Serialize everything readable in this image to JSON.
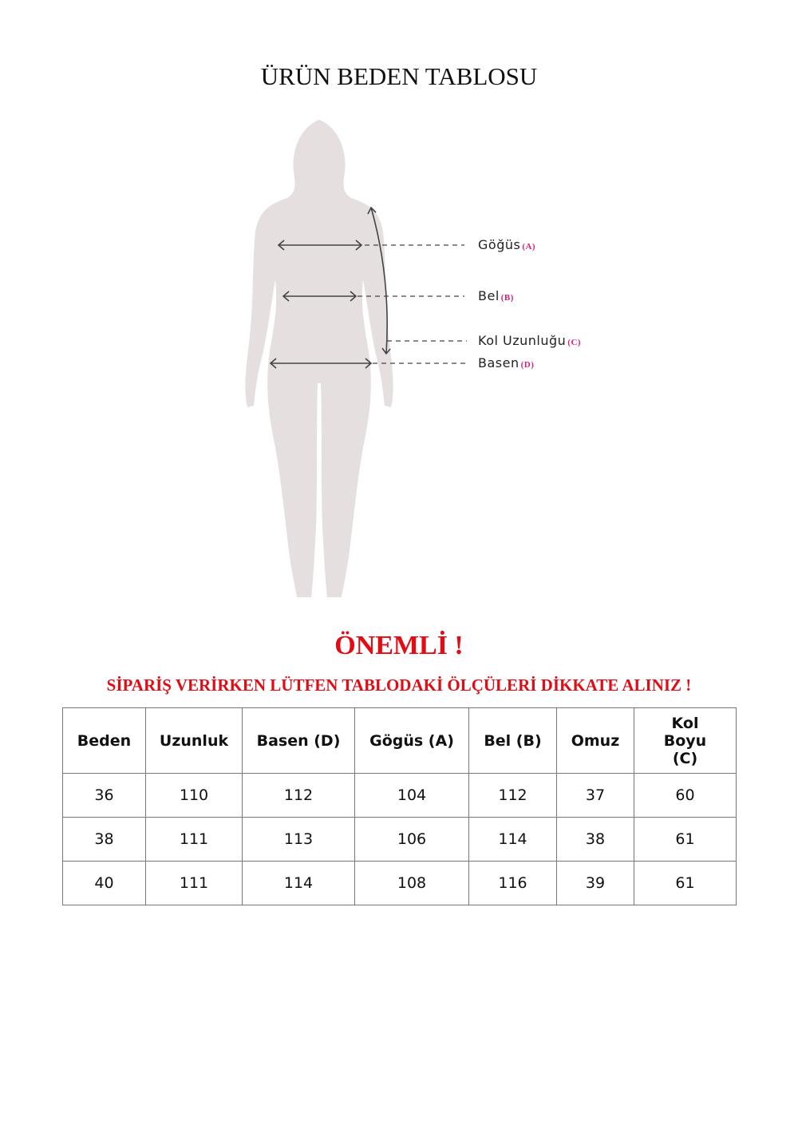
{
  "title": "ÜRÜN BEDEN TABLOSU",
  "figure": {
    "silhouette_color": "#e6dfe0",
    "labels": [
      {
        "text": "Göğüs",
        "tag": "(A)"
      },
      {
        "text": "Bel",
        "tag": "(B)"
      },
      {
        "text": "Kol Uzunluğu",
        "tag": "(C)"
      },
      {
        "text": "Basen",
        "tag": "(D)"
      }
    ]
  },
  "important": "ÖNEMLİ !",
  "notice": "SİPARİŞ VERİRKEN LÜTFEN TABLODAKİ ÖLÇÜLERİ DİKKATE ALINIZ !",
  "table": {
    "headers": [
      "Beden",
      "Uzunluk",
      "Basen (D)",
      "Gögüs (A)",
      "Bel (B)",
      "Omuz",
      "Kol Boyu (C)"
    ],
    "rows": [
      [
        "36",
        "110",
        "112",
        "104",
        "112",
        "37",
        "60"
      ],
      [
        "38",
        "111",
        "113",
        "106",
        "114",
        "38",
        "61"
      ],
      [
        "40",
        "111",
        "114",
        "108",
        "116",
        "39",
        "61"
      ]
    ]
  }
}
